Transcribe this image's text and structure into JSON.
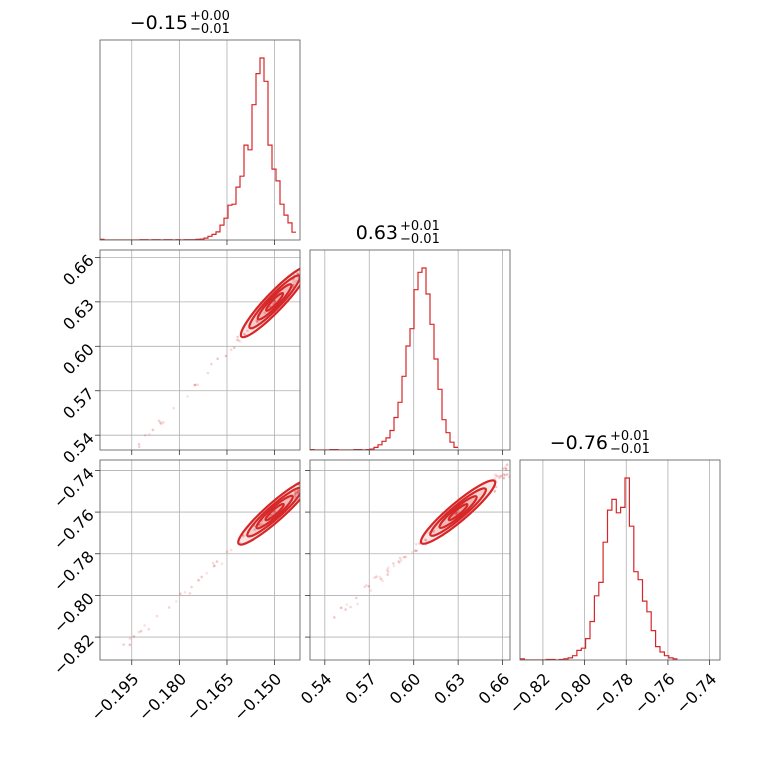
{
  "chart_data": {
    "type": "corner",
    "color": "#d62728",
    "grid": true,
    "parameters": [
      {
        "title_main": "−0.15",
        "title_plus": "+0.00",
        "title_minus": "−0.01",
        "median": -0.15,
        "range": [
          -0.205,
          -0.142
        ],
        "ticks": [
          {
            "value": -0.195,
            "label": "−0.195"
          },
          {
            "value": -0.18,
            "label": "−0.180"
          },
          {
            "value": -0.165,
            "label": "−0.165"
          },
          {
            "value": -0.15,
            "label": "−0.150"
          }
        ],
        "histogram": {
          "bin_start": -0.205,
          "bin_width": 0.00126,
          "counts": [
            2,
            0,
            0,
            0,
            0,
            0,
            0,
            0,
            0,
            0,
            1,
            1,
            0,
            1,
            1,
            0,
            1,
            1,
            0,
            1,
            0,
            1,
            1,
            1,
            2,
            3,
            6,
            12,
            18,
            26,
            48,
            70,
            112,
            115,
            170,
            205,
            305,
            290,
            435,
            535,
            585,
            510,
            305,
            228,
            190,
            115,
            80,
            55,
            25
          ]
        }
      },
      {
        "title_main": "0.63",
        "title_plus": "+0.01",
        "title_minus": "−0.01",
        "median": 0.63,
        "range": [
          0.53,
          0.665
        ],
        "ticks": [
          {
            "value": 0.54,
            "label": "0.54"
          },
          {
            "value": 0.57,
            "label": "0.57"
          },
          {
            "value": 0.6,
            "label": "0.60"
          },
          {
            "value": 0.63,
            "label": "0.63"
          },
          {
            "value": 0.66,
            "label": "0.66"
          }
        ],
        "histogram": {
          "bin_start": 0.53,
          "bin_width": 0.0027,
          "counts": [
            1,
            0,
            0,
            0,
            0,
            1,
            1,
            0,
            0,
            0,
            0,
            1,
            1,
            0,
            1,
            2,
            6,
            12,
            20,
            28,
            45,
            75,
            110,
            170,
            240,
            280,
            370,
            410,
            420,
            360,
            290,
            210,
            140,
            70,
            40,
            18,
            6
          ]
        }
      },
      {
        "title_main": "−0.76",
        "title_plus": "+0.01",
        "title_minus": "−0.01",
        "median": -0.76,
        "range": [
          -0.831,
          -0.735
        ],
        "ticks": [
          {
            "value": -0.82,
            "label": "−0.82"
          },
          {
            "value": -0.8,
            "label": "−0.80"
          },
          {
            "value": -0.78,
            "label": "−0.78"
          },
          {
            "value": -0.76,
            "label": "−0.76"
          },
          {
            "value": -0.74,
            "label": "−0.74"
          }
        ],
        "histogram": {
          "bin_start": -0.831,
          "bin_width": 0.0021,
          "counts": [
            2,
            0,
            0,
            0,
            0,
            0,
            1,
            1,
            0,
            1,
            2,
            4,
            8,
            18,
            22,
            40,
            72,
            120,
            145,
            220,
            280,
            300,
            275,
            285,
            340,
            250,
            165,
            150,
            110,
            90,
            55,
            25,
            15,
            8,
            4,
            2
          ]
        }
      }
    ],
    "pairs": [
      {
        "row": 1,
        "col": 0
      },
      {
        "row": 2,
        "col": 0
      },
      {
        "row": 2,
        "col": 1
      }
    ]
  }
}
